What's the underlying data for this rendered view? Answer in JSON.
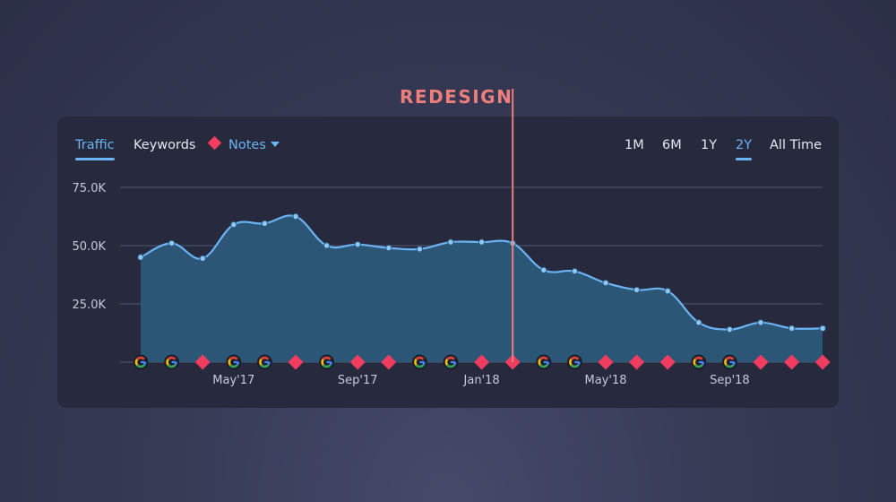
{
  "annotation": {
    "label": "REDESIGN",
    "x": "Feb'18"
  },
  "tabs": [
    {
      "label": "Traffic",
      "active": true
    },
    {
      "label": "Keywords",
      "active": false
    },
    {
      "label": "Notes",
      "active": false
    }
  ],
  "ranges": [
    {
      "label": "1M",
      "active": false
    },
    {
      "label": "6M",
      "active": false
    },
    {
      "label": "1Y",
      "active": false
    },
    {
      "label": "2Y",
      "active": true
    },
    {
      "label": "All Time",
      "active": false
    }
  ],
  "colors": {
    "line": "#6ab4f5",
    "area": "#2c5878",
    "note_marker": "#f03c5e",
    "annotation": "#ee7e7b"
  },
  "chart_data": {
    "type": "area",
    "title": "",
    "xlabel": "",
    "ylabel": "",
    "ylim": [
      0,
      75000
    ],
    "y_ticks": [
      "75.0K",
      "50.0K",
      "25.0K"
    ],
    "x_tick_labels": [
      "May'17",
      "Sep'17",
      "Jan'18",
      "May'18",
      "Sep'18"
    ],
    "x": [
      "Feb'17",
      "Mar'17",
      "Apr'17",
      "May'17",
      "Jun'17",
      "Jul'17",
      "Aug'17",
      "Sep'17",
      "Oct'17",
      "Nov'17",
      "Dec'17",
      "Jan'18",
      "Feb'18",
      "Mar'18",
      "Apr'18",
      "May'18",
      "Jun'18",
      "Jul'18",
      "Aug'18",
      "Sep'18",
      "Oct'18",
      "Nov'18",
      "Dec'18"
    ],
    "series": [
      {
        "values": [
          45000,
          51000,
          44500,
          59000,
          59500,
          62500,
          50000,
          50500,
          49000,
          48500,
          51500,
          51500,
          51000,
          39500,
          39000,
          34000,
          31000,
          30500,
          17000,
          14000,
          17000,
          14500,
          14500
        ]
      }
    ],
    "markers": [
      "google",
      "google",
      "note",
      "google",
      "google",
      "note",
      "google",
      "note",
      "note",
      "google",
      "google",
      "note",
      "note",
      "google",
      "google",
      "note",
      "note",
      "note",
      "google",
      "google",
      "note",
      "note",
      "note"
    ]
  }
}
